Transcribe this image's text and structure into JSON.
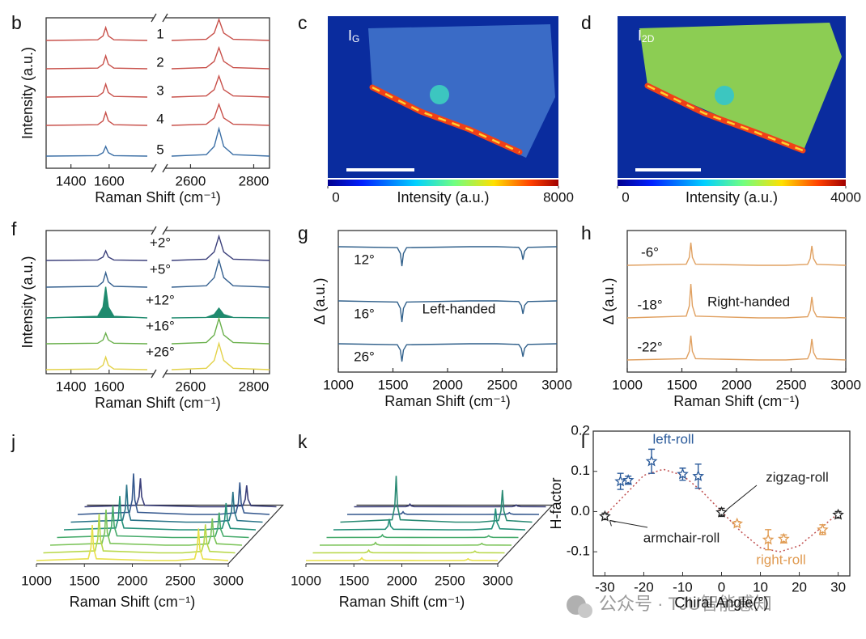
{
  "chart_data": [
    {
      "type": "line",
      "panel_label": "b",
      "xlabel": "Raman Shift (cm⁻¹)",
      "ylabel": "Intensity (a.u.)",
      "xlim_segments": [
        [
          1270,
          1800
        ],
        [
          2540,
          2850
        ]
      ],
      "xticks": [
        1400,
        1600,
        2600,
        2800
      ],
      "x": [
        1270,
        1540,
        1568,
        1582,
        1596,
        1625,
        1800,
        2540,
        2650,
        2675,
        2690,
        2705,
        2735,
        2850
      ],
      "series": [
        {
          "name": "1",
          "color": "#c8504a",
          "values": [
            0,
            0.04,
            0.28,
            0.8,
            0.28,
            0.04,
            0,
            0,
            0.07,
            0.46,
            1.3,
            0.46,
            0.07,
            0
          ]
        },
        {
          "name": "2",
          "color": "#c8504a",
          "values": [
            0,
            0.04,
            0.28,
            0.8,
            0.28,
            0.04,
            0,
            0,
            0.07,
            0.46,
            1.3,
            0.46,
            0.07,
            0
          ]
        },
        {
          "name": "3",
          "color": "#c8504a",
          "values": [
            0,
            0.04,
            0.28,
            0.8,
            0.28,
            0.04,
            0,
            0,
            0.07,
            0.46,
            1.3,
            0.46,
            0.07,
            0
          ]
        },
        {
          "name": "4",
          "color": "#c8504a",
          "values": [
            0,
            0.04,
            0.28,
            0.8,
            0.28,
            0.04,
            0,
            0,
            0.07,
            0.46,
            1.3,
            0.46,
            0.07,
            0
          ]
        },
        {
          "name": "5",
          "color": "#3a6ea5",
          "values": [
            0,
            0.03,
            0.21,
            0.6,
            0.21,
            0.03,
            0,
            0,
            0.09,
            0.6,
            1.7,
            0.6,
            0.09,
            0
          ]
        }
      ]
    },
    {
      "type": "heatmap",
      "panel_label": "c",
      "label": "I",
      "label_sub": "G",
      "colorbar_label": "Intensity (a.u.)",
      "clim": [
        0,
        8000
      ],
      "cticks": [
        0,
        8000
      ],
      "colormap": "jet"
    },
    {
      "type": "heatmap",
      "panel_label": "d",
      "label": "I",
      "label_sub": "2D",
      "colorbar_label": "Intensity (a.u.)",
      "clim": [
        0,
        4000
      ],
      "cticks": [
        0,
        4000
      ],
      "colormap": "jet"
    },
    {
      "type": "line",
      "panel_label": "f",
      "xlabel": "Raman Shift (cm⁻¹)",
      "ylabel": "Intensity (a.u.)",
      "xlim_segments": [
        [
          1270,
          1800
        ],
        [
          2540,
          2850
        ]
      ],
      "xticks": [
        1400,
        1600,
        2600,
        2800
      ],
      "x": [
        1270,
        1540,
        1568,
        1582,
        1596,
        1625,
        1800,
        2540,
        2650,
        2675,
        2690,
        2705,
        2735,
        2850
      ],
      "series": [
        {
          "name": "+2°",
          "color": "#3b3f7a",
          "values": [
            0,
            0.05,
            0.35,
            1,
            0.35,
            0.05,
            0,
            0,
            0.13,
            0.88,
            2.5,
            0.88,
            0.13,
            0
          ]
        },
        {
          "name": "+5°",
          "color": "#35608f",
          "values": [
            0,
            0.08,
            0.53,
            1.5,
            0.53,
            0.08,
            0,
            0,
            0.14,
            0.98,
            2.8,
            0.98,
            0.14,
            0
          ]
        },
        {
          "name": "+12°",
          "color": "#1f8a6e",
          "filled": true,
          "values": [
            0,
            0.16,
            1.12,
            3.2,
            1.12,
            0.16,
            0,
            0,
            0.05,
            0.35,
            1,
            0.35,
            0.05,
            0
          ]
        },
        {
          "name": "+16°",
          "color": "#6ab04c",
          "values": [
            0,
            0.06,
            0.39,
            1.1,
            0.39,
            0.06,
            0,
            0,
            0.13,
            0.91,
            2.6,
            0.91,
            0.13,
            0
          ]
        },
        {
          "name": "+26°",
          "color": "#e3d24a",
          "values": [
            0,
            0.07,
            0.46,
            1.3,
            0.46,
            0.07,
            0,
            0,
            0.14,
            0.95,
            2.7,
            0.95,
            0.14,
            0
          ]
        }
      ]
    },
    {
      "type": "line",
      "panel_label": "g",
      "xlabel": "Raman Shift (cm⁻¹)",
      "ylabel": "Δ (a.u.)",
      "annotation": "Left-handed",
      "xlim": [
        1000,
        3000
      ],
      "xticks": [
        1000,
        1500,
        2000,
        2500,
        3000
      ],
      "x": [
        1000,
        1540,
        1568,
        1582,
        1596,
        1625,
        2200,
        2450,
        2650,
        2675,
        2690,
        2705,
        2735,
        3000
      ],
      "series": [
        {
          "name": "12°",
          "color": "#2f5f8a",
          "values": [
            0,
            -0.06,
            -0.42,
            -1.2,
            -0.42,
            -0.06,
            0,
            0,
            -0.04,
            -0.28,
            -0.8,
            -0.28,
            -0.04,
            0
          ]
        },
        {
          "name": "16°",
          "color": "#2f5f8a",
          "values": [
            0,
            -0.07,
            -0.46,
            -1.3,
            -0.46,
            -0.07,
            0,
            0,
            -0.04,
            -0.28,
            -0.8,
            -0.28,
            -0.04,
            0
          ]
        },
        {
          "name": "26°",
          "color": "#2f5f8a",
          "values": [
            0,
            -0.06,
            -0.39,
            -1.1,
            -0.39,
            -0.06,
            0,
            0,
            -0.04,
            -0.28,
            -0.8,
            -0.28,
            -0.04,
            0
          ]
        }
      ]
    },
    {
      "type": "line",
      "panel_label": "h",
      "xlabel": "Raman Shift (cm⁻¹)",
      "ylabel": "Δ (a.u.)",
      "annotation": "Right-handed",
      "xlim": [
        1000,
        3000
      ],
      "xticks": [
        1000,
        1500,
        2000,
        2500,
        3000
      ],
      "x": [
        1000,
        1540,
        1568,
        1582,
        1596,
        1625,
        2200,
        2450,
        2650,
        2675,
        2690,
        2705,
        2735,
        3000
      ],
      "series": [
        {
          "name": "-6°",
          "color": "#e0a060",
          "values": [
            0,
            0.07,
            0.49,
            1.4,
            0.49,
            0.07,
            0,
            0,
            0.06,
            0.42,
            1.2,
            0.42,
            0.06,
            0
          ]
        },
        {
          "name": "-18°",
          "color": "#e0a060",
          "values": [
            0,
            0.11,
            0.74,
            2.1,
            0.74,
            0.11,
            0,
            0,
            0.07,
            0.46,
            1.3,
            0.46,
            0.07,
            0
          ]
        },
        {
          "name": "-22°",
          "color": "#e0a060",
          "values": [
            0,
            0.08,
            0.53,
            1.5,
            0.53,
            0.08,
            0,
            0,
            0.07,
            0.46,
            1.3,
            0.46,
            0.07,
            0
          ]
        }
      ]
    },
    {
      "type": "waterfall",
      "panel_label": "j",
      "xlabel": "Raman Shift (cm⁻¹)",
      "xlim": [
        1000,
        3000
      ],
      "xticks": [
        1000,
        1500,
        2000,
        2500,
        3000
      ],
      "x": [
        1000,
        1540,
        1568,
        1582,
        1596,
        1625,
        2200,
        2450,
        2650,
        2675,
        2690,
        2705,
        2735,
        3000
      ],
      "series": [
        {
          "color": "#e8e04a",
          "values": [
            0,
            0.1,
            0.7,
            2,
            0.7,
            0.1,
            0,
            0,
            0.09,
            0.63,
            1.8,
            0.63,
            0.09,
            0
          ]
        },
        {
          "color": "#b8d84a",
          "values": [
            0,
            0.11,
            0.77,
            2.2,
            0.77,
            0.11,
            0,
            0,
            0.08,
            0.56,
            1.6,
            0.56,
            0.08,
            0
          ]
        },
        {
          "color": "#7cc45a",
          "values": [
            0,
            0.1,
            0.7,
            2,
            0.7,
            0.1,
            0,
            0,
            0.08,
            0.53,
            1.5,
            0.53,
            0.08,
            0
          ]
        },
        {
          "color": "#45aa6a",
          "values": [
            0,
            0.09,
            0.63,
            1.8,
            0.63,
            0.09,
            0,
            0,
            0.07,
            0.49,
            1.4,
            0.49,
            0.07,
            0
          ]
        },
        {
          "color": "#24907a",
          "values": [
            0,
            0.1,
            0.67,
            1.9,
            0.67,
            0.1,
            0,
            0,
            0.08,
            0.53,
            1.5,
            0.53,
            0.08,
            0
          ]
        },
        {
          "color": "#2a7488",
          "values": [
            0,
            0.11,
            0.74,
            2.1,
            0.74,
            0.11,
            0,
            0,
            0.09,
            0.6,
            1.7,
            0.6,
            0.09,
            0
          ]
        },
        {
          "color": "#35588e",
          "values": [
            0,
            0.12,
            0.81,
            2.3,
            0.81,
            0.12,
            0,
            0,
            0.09,
            0.63,
            1.8,
            0.63,
            0.09,
            0
          ]
        },
        {
          "color": "#3b3f7a",
          "values": [
            0,
            0.08,
            0.56,
            1.6,
            0.56,
            0.08,
            0,
            0,
            0.06,
            0.42,
            1.2,
            0.42,
            0.06,
            0
          ]
        }
      ]
    },
    {
      "type": "waterfall",
      "panel_label": "k",
      "xlabel": "Raman Shift (cm⁻¹)",
      "xlim": [
        1000,
        3000
      ],
      "xticks": [
        1000,
        1500,
        2000,
        2500,
        3000
      ],
      "x": [
        1000,
        1540,
        1568,
        1582,
        1596,
        1625,
        2200,
        2450,
        2650,
        2675,
        2690,
        2705,
        2735,
        3000
      ],
      "series": [
        {
          "color": "#e8e04a",
          "values": [
            0,
            0.01,
            0.05,
            0.15,
            0.05,
            0.01,
            0,
            0,
            0.01,
            0.04,
            0.1,
            0.04,
            0.01,
            0
          ]
        },
        {
          "color": "#b8d84a",
          "values": [
            0,
            0.01,
            0.05,
            0.15,
            0.05,
            0.01,
            0,
            0,
            0.01,
            0.04,
            0.1,
            0.04,
            0.01,
            0
          ]
        },
        {
          "color": "#7cc45a",
          "values": [
            0,
            0.01,
            0.05,
            0.15,
            0.05,
            0.01,
            0,
            0,
            0.01,
            0.04,
            0.1,
            0.04,
            0.01,
            0
          ]
        },
        {
          "color": "#45aa6a",
          "values": [
            0,
            0.01,
            0.05,
            0.15,
            0.05,
            0.01,
            0,
            0,
            0.01,
            0.04,
            0.1,
            0.04,
            0.01,
            0
          ]
        },
        {
          "color": "#24907a",
          "values": [
            0,
            0.03,
            0.21,
            0.6,
            0.21,
            0.03,
            0,
            0,
            0.06,
            0.42,
            1.2,
            0.42,
            0.06,
            0
          ]
        },
        {
          "color": "#2a8a74",
          "values": [
            0,
            0.13,
            0.91,
            2.6,
            0.91,
            0.13,
            0,
            0,
            0.09,
            0.63,
            1.8,
            0.63,
            0.09,
            0
          ]
        },
        {
          "color": "#35588e",
          "values": [
            0,
            0.01,
            0.05,
            0.15,
            0.05,
            0.01,
            0,
            0,
            0.01,
            0.04,
            0.1,
            0.04,
            0.01,
            0
          ]
        },
        {
          "color": "#3b3f7a",
          "values": [
            0,
            0.01,
            0.05,
            0.15,
            0.05,
            0.01,
            0,
            0,
            0.01,
            0.04,
            0.1,
            0.04,
            0.01,
            0
          ]
        }
      ]
    },
    {
      "type": "scatter",
      "panel_label": "l",
      "xlabel": "Chiral Angle(°)",
      "ylabel": "H-factor",
      "xlim": [
        -33,
        33
      ],
      "xticks": [
        -30,
        -20,
        -10,
        0,
        10,
        20,
        30
      ],
      "ylim": [
        -0.16,
        0.2
      ],
      "yticks": [
        {
          "value": -0.1,
          "label": "-0.1"
        },
        {
          "value": 0,
          "label": "0.0"
        },
        0.1,
        0.2
      ],
      "fit": {
        "color": "#c05050",
        "x": [
          -30,
          -25,
          -20,
          -15,
          -10,
          -5,
          0,
          5,
          10,
          15,
          20,
          25,
          30
        ],
        "values": [
          -0.01,
          0.04,
          0.09,
          0.105,
          0.09,
          0.05,
          0,
          -0.05,
          -0.09,
          -0.1,
          -0.085,
          -0.045,
          -0.005
        ]
      },
      "series": [
        {
          "name": "left-roll",
          "color": "#2a5a9a",
          "x": [
            -26,
            -24,
            -18,
            -10,
            -6
          ],
          "values": [
            0.075,
            0.078,
            0.125,
            0.093,
            0.088
          ],
          "errors": [
            0.02,
            0.01,
            0.03,
            0.015,
            0.03
          ]
        },
        {
          "name": "armchair-roll",
          "color": "#222222",
          "x": [
            -30,
            30
          ],
          "values": [
            -0.012,
            -0.008
          ],
          "errors": [
            0.008,
            0.008
          ]
        },
        {
          "name": "zigzag-roll",
          "color": "#222222",
          "x": [
            0
          ],
          "values": [
            -0.002
          ],
          "errors": [
            0.01
          ]
        },
        {
          "name": "right-roll",
          "color": "#e09a50",
          "x": [
            4,
            12,
            16,
            26
          ],
          "values": [
            -0.03,
            -0.07,
            -0.068,
            -0.045
          ],
          "errors": [
            0.005,
            0.025,
            0.01,
            0.012
          ]
        }
      ]
    }
  ],
  "watermark": "公众号 · TJU智能感知"
}
